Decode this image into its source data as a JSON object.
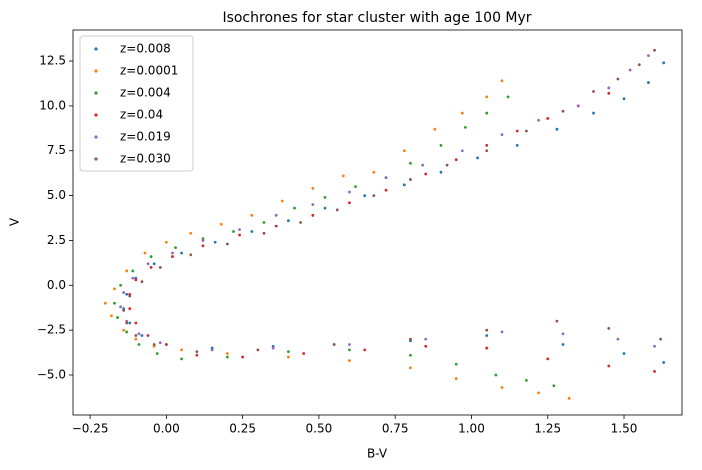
{
  "chart_data": {
    "type": "scatter",
    "title": "Isochrones for star cluster with age 100 Myr",
    "xlabel": "B-V",
    "ylabel": "V",
    "xlim": [
      -0.306,
      1.69
    ],
    "ylim": [
      -7.23,
      14.23
    ],
    "xticks": [
      {
        "value": -0.25,
        "label": "−0.25"
      },
      {
        "value": 0,
        "label": "0.00"
      },
      {
        "value": 0.25,
        "label": "0.25"
      },
      {
        "value": 0.5,
        "label": "0.50"
      },
      {
        "value": 0.75,
        "label": "0.75"
      },
      {
        "value": 1,
        "label": "1.00"
      },
      {
        "value": 1.25,
        "label": "1.25"
      },
      {
        "value": 1.5,
        "label": "1.50"
      }
    ],
    "yticks": [
      {
        "value": -5,
        "label": "−5.0"
      },
      {
        "value": -2.5,
        "label": "−2.5"
      },
      {
        "value": 0,
        "label": "0.0"
      },
      {
        "value": 2.5,
        "label": "2.5"
      },
      {
        "value": 5,
        "label": "5.0"
      },
      {
        "value": 7.5,
        "label": "7.5"
      },
      {
        "value": 10,
        "label": "10.0"
      },
      {
        "value": 12.5,
        "label": "12.5"
      }
    ],
    "legend": "upper left",
    "series": [
      {
        "name": "z=0.008",
        "color": "#1f77b4",
        "x": [
          1.63,
          1.58,
          1.5,
          1.4,
          1.28,
          1.15,
          1.02,
          0.9,
          0.78,
          0.65,
          0.52,
          0.4,
          0.28,
          0.16,
          0.05,
          -0.04,
          -0.1,
          -0.13,
          -0.14,
          -0.12,
          -0.08,
          0.0,
          0.15,
          0.35,
          0.55,
          0.8,
          1.05,
          1.3,
          1.5,
          1.63
        ],
        "values": [
          12.4,
          11.3,
          10.4,
          9.6,
          8.7,
          7.8,
          7.1,
          6.3,
          5.6,
          5.0,
          4.3,
          3.6,
          3.0,
          2.4,
          1.8,
          1.2,
          0.4,
          -0.5,
          -1.3,
          -2.1,
          -2.8,
          -3.3,
          -3.5,
          -3.4,
          -3.3,
          -3.1,
          -2.8,
          -3.3,
          -3.8,
          -4.3
        ]
      },
      {
        "name": "z=0.0001",
        "color": "#ff7f0e",
        "x": [
          1.1,
          1.05,
          0.97,
          0.88,
          0.78,
          0.68,
          0.58,
          0.48,
          0.38,
          0.28,
          0.18,
          0.08,
          0.0,
          -0.07,
          -0.13,
          -0.17,
          -0.2,
          -0.18,
          -0.14,
          -0.1,
          -0.04,
          0.05,
          0.2,
          0.4,
          0.6,
          0.8,
          0.95,
          1.1,
          1.22,
          1.32
        ],
        "values": [
          11.4,
          10.5,
          9.6,
          8.7,
          7.5,
          6.3,
          6.1,
          5.4,
          4.7,
          3.9,
          3.4,
          2.9,
          2.4,
          1.8,
          0.8,
          -0.2,
          -1.0,
          -1.7,
          -2.5,
          -3.0,
          -3.4,
          -3.6,
          -3.8,
          -4.0,
          -4.2,
          -4.6,
          -5.2,
          -5.7,
          -6.0,
          -6.3
        ]
      },
      {
        "name": "z=0.004",
        "color": "#2ca02c",
        "x": [
          1.12,
          1.05,
          0.98,
          0.9,
          0.8,
          0.72,
          0.62,
          0.52,
          0.42,
          0.32,
          0.22,
          0.12,
          0.03,
          -0.05,
          -0.11,
          -0.15,
          -0.17,
          -0.16,
          -0.13,
          -0.09,
          -0.03,
          0.05,
          0.2,
          0.4,
          0.6,
          0.8,
          0.95,
          1.08,
          1.18,
          1.27
        ],
        "values": [
          10.5,
          9.6,
          8.8,
          7.8,
          6.8,
          6.0,
          5.5,
          4.9,
          4.3,
          3.5,
          3.0,
          2.6,
          2.1,
          1.6,
          0.8,
          0.0,
          -1.0,
          -1.8,
          -2.6,
          -3.3,
          -3.8,
          -4.1,
          -4.0,
          -3.7,
          -3.6,
          -3.9,
          -4.4,
          -5.0,
          -5.3,
          -5.6
        ]
      },
      {
        "name": "z=0.04",
        "color": "#d62728",
        "x": [
          1.45,
          1.35,
          1.25,
          1.15,
          1.05,
          0.95,
          0.85,
          0.72,
          0.6,
          0.48,
          0.36,
          0.24,
          0.12,
          0.02,
          -0.05,
          -0.1,
          -0.12,
          -0.12,
          -0.1,
          -0.06,
          0.0,
          0.1,
          0.25,
          0.45,
          0.65,
          0.85,
          1.05,
          1.25,
          1.45,
          1.6
        ],
        "values": [
          10.7,
          10.0,
          9.3,
          8.6,
          7.8,
          7.0,
          6.2,
          5.3,
          4.6,
          3.9,
          3.3,
          2.8,
          2.2,
          1.6,
          1.0,
          0.3,
          -0.5,
          -1.3,
          -2.1,
          -2.8,
          -3.3,
          -3.9,
          -4.0,
          -3.8,
          -3.6,
          -3.4,
          -3.5,
          -4.1,
          -4.5,
          -4.8
        ]
      },
      {
        "name": "z=0.019",
        "color": "#9467bd",
        "x": [
          1.58,
          1.52,
          1.45,
          1.35,
          1.22,
          1.1,
          0.97,
          0.84,
          0.72,
          0.6,
          0.48,
          0.36,
          0.24,
          0.12,
          0.02,
          -0.06,
          -0.11,
          -0.14,
          -0.15,
          -0.13,
          -0.09,
          -0.02,
          0.15,
          0.35,
          0.6,
          0.85,
          1.1,
          1.3,
          1.48,
          1.6
        ],
        "values": [
          12.8,
          12.0,
          11.0,
          10.0,
          9.2,
          8.4,
          7.5,
          6.7,
          6.0,
          5.2,
          4.5,
          3.9,
          3.1,
          2.5,
          1.8,
          1.2,
          0.4,
          -0.4,
          -1.2,
          -2.0,
          -2.7,
          -3.2,
          -3.6,
          -3.5,
          -3.3,
          -3.0,
          -2.6,
          -2.7,
          -3.0,
          -3.4
        ]
      },
      {
        "name": "z=0.030",
        "color": "#8c564b",
        "x": [
          1.6,
          1.55,
          1.48,
          1.4,
          1.3,
          1.18,
          1.05,
          0.92,
          0.8,
          0.68,
          0.56,
          0.44,
          0.32,
          0.2,
          0.08,
          -0.02,
          -0.08,
          -0.12,
          -0.14,
          -0.13,
          -0.1,
          -0.04,
          0.1,
          0.3,
          0.55,
          0.8,
          1.05,
          1.28,
          1.45,
          1.62
        ],
        "values": [
          13.1,
          12.3,
          11.5,
          10.8,
          9.7,
          8.6,
          7.5,
          6.7,
          5.9,
          5.0,
          4.2,
          3.5,
          2.9,
          2.3,
          1.7,
          1.0,
          0.2,
          -0.6,
          -1.4,
          -2.1,
          -2.8,
          -3.3,
          -3.7,
          -3.6,
          -3.3,
          -3.0,
          -2.5,
          -2.0,
          -2.4,
          -3.0
        ]
      }
    ]
  }
}
